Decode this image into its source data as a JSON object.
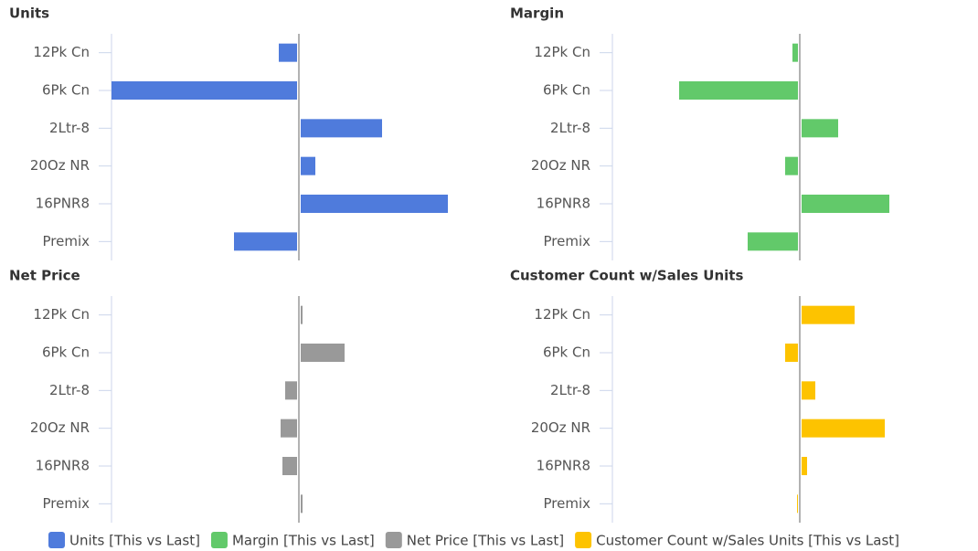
{
  "chart_data": [
    {
      "type": "bar",
      "title": "Units",
      "categories": [
        "12Pk Cn",
        "6Pk Cn",
        "2Ltr-8",
        "20Oz NR",
        "16PNR8",
        "Premix"
      ],
      "series": [
        {
          "name": "Units [This vs Last]",
          "color": "#4f7bdc",
          "values": [
            -22,
            -205,
            91,
            18,
            163,
            -71
          ]
        }
      ],
      "xlim": [
        -205,
        205
      ]
    },
    {
      "type": "bar",
      "title": "Margin",
      "categories": [
        "12Pk Cn",
        "6Pk Cn",
        "2Ltr-8",
        "20Oz NR",
        "16PNR8",
        "Premix"
      ],
      "series": [
        {
          "name": "Margin [This vs Last]",
          "color": "#62c96a",
          "values": [
            -8,
            -132,
            42,
            -16,
            98,
            -57
          ]
        }
      ],
      "xlim": [
        -205,
        205
      ]
    },
    {
      "type": "bar",
      "title": "Net Price",
      "categories": [
        "12Pk Cn",
        "6Pk Cn",
        "2Ltr-8",
        "20Oz NR",
        "16PNR8",
        "Premix"
      ],
      "series": [
        {
          "name": "Net Price [This vs Last]",
          "color": "#999999",
          "values": [
            4,
            50,
            -15,
            -20,
            -18,
            4
          ]
        }
      ],
      "xlim": [
        -205,
        205
      ]
    },
    {
      "type": "bar",
      "title": "Customer Count w/Sales Units",
      "categories": [
        "12Pk Cn",
        "6Pk Cn",
        "2Ltr-8",
        "20Oz NR",
        "16PNR8",
        "Premix"
      ],
      "series": [
        {
          "name": "Customer Count w/Sales Units [This vs Last]",
          "color": "#fdc300",
          "values": [
            60,
            -16,
            17,
            93,
            8,
            -3
          ]
        }
      ],
      "xlim": [
        -205,
        205
      ]
    }
  ]
}
